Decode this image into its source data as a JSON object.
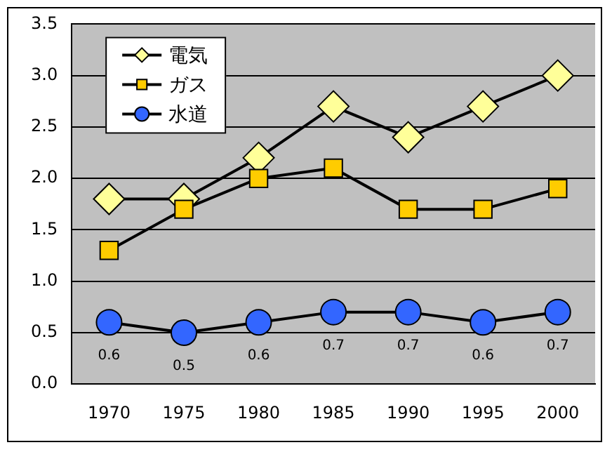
{
  "chart_data": {
    "type": "line",
    "categories": [
      "1970",
      "1975",
      "1980",
      "1985",
      "1990",
      "1995",
      "2000"
    ],
    "series": [
      {
        "name": "電気",
        "color": "#ffff99",
        "marker": "diamond",
        "values": [
          1.8,
          1.8,
          2.2,
          2.7,
          2.4,
          2.7,
          3.0
        ]
      },
      {
        "name": "ガス",
        "color": "#ffcc00",
        "marker": "square",
        "values": [
          1.3,
          1.7,
          2.0,
          2.1,
          1.7,
          1.7,
          1.9
        ]
      },
      {
        "name": "水道",
        "color": "#3366ff",
        "marker": "circle",
        "values": [
          0.6,
          0.5,
          0.6,
          0.7,
          0.7,
          0.6,
          0.7
        ],
        "value_labels": [
          "0.6",
          "0.5",
          "0.6",
          "0.7",
          "0.7",
          "0.6",
          "0.7"
        ]
      }
    ],
    "ylim": [
      0,
      3.5
    ],
    "yticks": [
      {
        "value": 0,
        "label": "0.0"
      },
      {
        "value": 0.5,
        "label": "0.5"
      },
      {
        "value": 1,
        "label": "1.0"
      },
      {
        "value": 1.5,
        "label": "1.5"
      },
      {
        "value": 2,
        "label": "2.0"
      },
      {
        "value": 2.5,
        "label": "2.5"
      },
      {
        "value": 3,
        "label": "3.0"
      },
      {
        "value": 3.5,
        "label": "3.5"
      }
    ],
    "grid": "y",
    "legend": "top left",
    "line_style": "solid"
  }
}
